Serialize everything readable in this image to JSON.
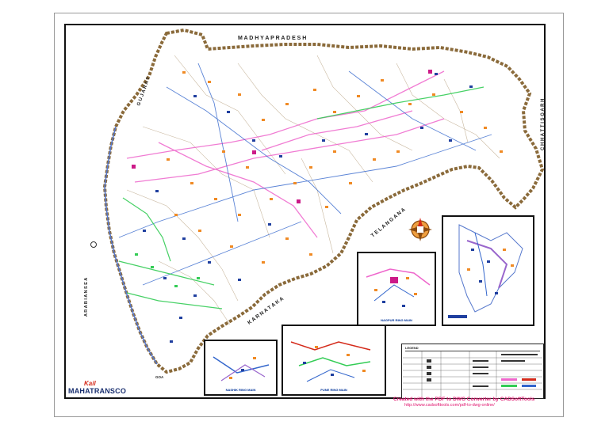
{
  "map": {
    "labels": {
      "madhya_pradesh": "M A D H Y A   P R A D E S H",
      "gujarat": "G U J A R A T",
      "telangana": "T E L A N G A N A",
      "karnataka": "K A R N A T A K A",
      "chhattisgarh": "C H H A T T I S G A R H",
      "arabian_sea": "A R A B I A N   S E A",
      "goa": "GOA"
    },
    "colors": {
      "state_border": "#8a6a3a",
      "coast": "#5577cc",
      "substation_orange": "#f08a24",
      "substation_blue": "#1f3f9f",
      "line_pink": "#ee66cc",
      "line_green": "#33cc55",
      "line_blue": "#3366cc"
    }
  },
  "insets": [
    {
      "name": "mumbai-inset",
      "title": ""
    },
    {
      "name": "nagpur-ring-main-inset",
      "title": "NAGPUR RING MAIN"
    },
    {
      "name": "pune-ring-main-inset",
      "title": "PUNE RING MAIN"
    },
    {
      "name": "nashik-ring-main-inset",
      "title": "NASHIK RING MAIN"
    }
  ],
  "legend": {
    "title": "LEGEND"
  },
  "logo": {
    "mark": "Kail",
    "name": "MAHATRANSCO"
  },
  "watermark": {
    "text": "Created with the PDF to DWG Converter by CADSoftTools",
    "url": "http://www.cadsofttools.com/pdf-to-dwg-online/"
  }
}
